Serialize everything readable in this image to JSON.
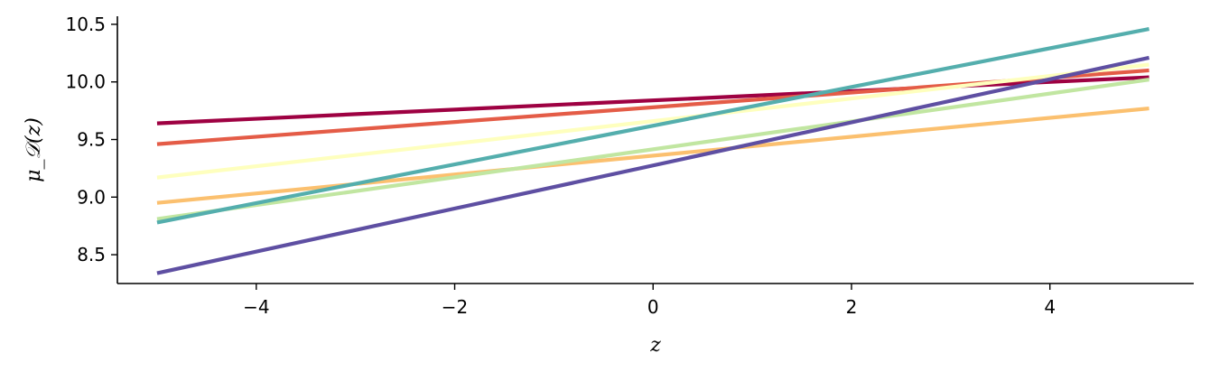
{
  "chart_data": {
    "type": "line",
    "title": "",
    "xlabel": "z",
    "ylabel": "μ_𝒟(z)",
    "xlim": [
      -5.4,
      5.45
    ],
    "ylim": [
      8.25,
      10.57
    ],
    "xticks": [
      -4,
      -2,
      0,
      2,
      4
    ],
    "xtick_labels": [
      "−4",
      "−2",
      "0",
      "2",
      "4"
    ],
    "yticks": [
      8.5,
      9.0,
      9.5,
      10.0,
      10.5
    ],
    "ytick_labels": [
      "8.5",
      "9.0",
      "9.5",
      "10.0",
      "10.5"
    ],
    "grid": false,
    "legend": "none",
    "series": [
      {
        "x": [
          -5,
          5
        ],
        "values": [
          9.64,
          10.04
        ],
        "color": "#9e0142"
      },
      {
        "x": [
          -5,
          5
        ],
        "values": [
          9.46,
          10.1
        ],
        "color": "#e45c47"
      },
      {
        "x": [
          -5,
          5
        ],
        "values": [
          8.95,
          9.77
        ],
        "color": "#fbc06f"
      },
      {
        "x": [
          -5,
          5
        ],
        "values": [
          9.17,
          10.15
        ],
        "color": "#feffbe"
      },
      {
        "x": [
          -5,
          5
        ],
        "values": [
          8.81,
          10.02
        ],
        "color": "#c1e6a1"
      },
      {
        "x": [
          -5,
          5
        ],
        "values": [
          8.78,
          10.46
        ],
        "color": "#54aead"
      },
      {
        "x": [
          -5,
          5
        ],
        "values": [
          8.34,
          10.21
        ],
        "color": "#5e4fa2"
      }
    ]
  }
}
